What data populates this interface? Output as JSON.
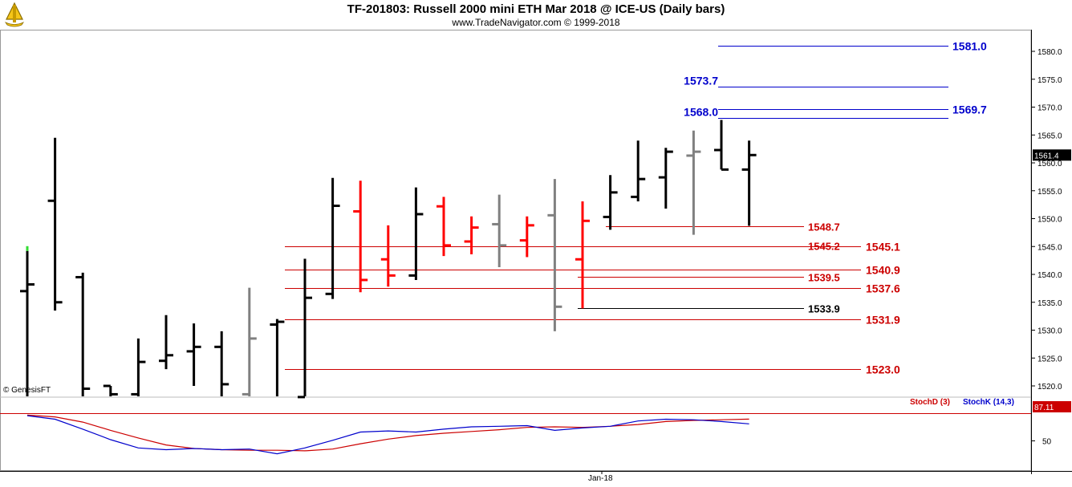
{
  "header": {
    "title": "TF-201803:  Russell 2000 mini ETH Mar 2018 @ ICE-US  (Daily bars)",
    "subtitle": "www.TradeNavigator.com © 1999-2018"
  },
  "watermark": "© GenesisFT",
  "chart_data": [
    {
      "type": "ohlc",
      "title": "TF-201803:  Russell 2000 mini ETH Mar 2018 @ ICE-US  (Daily bars)",
      "y_ticks": [
        1520.0,
        1525.0,
        1530.0,
        1535.0,
        1540.0,
        1545.0,
        1550.0,
        1555.0,
        1560.0,
        1565.0,
        1570.0,
        1575.0,
        1580.0
      ],
      "ylim": [
        1517.5,
        1584.0
      ],
      "x_tick_label": "Jan-18",
      "last_price_label": "1561.4",
      "bars": [
        {
          "o": 1537.0,
          "h": 1544.2,
          "l": 1518.0,
          "c": 1538.2,
          "color": "black"
        },
        {
          "o": 1553.2,
          "h": 1564.5,
          "l": 1533.5,
          "c": 1535.0,
          "color": "black"
        },
        {
          "o": 1539.5,
          "h": 1540.3,
          "l": 1518.0,
          "c": 1519.5,
          "color": "black"
        },
        {
          "o": 1520.0,
          "h": 1520.0,
          "l": 1518.0,
          "c": 1518.5,
          "color": "black"
        },
        {
          "o": 1518.5,
          "h": 1528.5,
          "l": 1518.0,
          "c": 1524.3,
          "color": "black"
        },
        {
          "o": 1524.5,
          "h": 1532.7,
          "l": 1523.0,
          "c": 1525.5,
          "color": "black"
        },
        {
          "o": 1526.2,
          "h": 1531.2,
          "l": 1520.0,
          "c": 1527.0,
          "color": "black"
        },
        {
          "o": 1527.0,
          "h": 1529.8,
          "l": 1518.0,
          "c": 1520.3,
          "color": "black"
        },
        {
          "o": 1518.5,
          "h": 1537.6,
          "l": 1518.0,
          "c": 1528.5,
          "color": "gray"
        },
        {
          "o": 1531.0,
          "h": 1532.0,
          "l": 1518.0,
          "c": 1531.5,
          "color": "black"
        },
        {
          "o": 1518.0,
          "h": 1542.8,
          "l": 1518.0,
          "c": 1535.8,
          "color": "black"
        },
        {
          "o": 1536.5,
          "h": 1557.3,
          "l": 1535.6,
          "c": 1552.3,
          "color": "black"
        },
        {
          "o": 1551.3,
          "h": 1556.8,
          "l": 1536.8,
          "c": 1539.0,
          "color": "red"
        },
        {
          "o": 1542.7,
          "h": 1548.8,
          "l": 1537.8,
          "c": 1539.8,
          "color": "red"
        },
        {
          "o": 1539.8,
          "h": 1555.6,
          "l": 1539.0,
          "c": 1550.8,
          "color": "black"
        },
        {
          "o": 1552.2,
          "h": 1553.9,
          "l": 1543.3,
          "c": 1545.2,
          "color": "red"
        },
        {
          "o": 1545.9,
          "h": 1550.4,
          "l": 1543.6,
          "c": 1548.4,
          "color": "red"
        },
        {
          "o": 1549.0,
          "h": 1554.3,
          "l": 1541.3,
          "c": 1545.2,
          "color": "gray"
        },
        {
          "o": 1546.1,
          "h": 1550.4,
          "l": 1543.1,
          "c": 1548.8,
          "color": "red"
        },
        {
          "o": 1550.6,
          "h": 1557.1,
          "l": 1529.8,
          "c": 1534.2,
          "color": "gray"
        },
        {
          "o": 1542.7,
          "h": 1553.1,
          "l": 1533.9,
          "c": 1549.6,
          "color": "red"
        },
        {
          "o": 1550.3,
          "h": 1557.8,
          "l": 1548.0,
          "c": 1554.7,
          "color": "black"
        },
        {
          "o": 1553.9,
          "h": 1564.0,
          "l": 1553.1,
          "c": 1557.1,
          "color": "black"
        },
        {
          "o": 1557.4,
          "h": 1562.7,
          "l": 1551.8,
          "c": 1562.0,
          "color": "black"
        },
        {
          "o": 1561.3,
          "h": 1565.8,
          "l": 1547.1,
          "c": 1562.0,
          "color": "gray"
        },
        {
          "o": 1562.3,
          "h": 1567.7,
          "l": 1558.8,
          "c": 1558.8,
          "color": "black"
        },
        {
          "o": 1558.8,
          "h": 1564.0,
          "l": 1548.7,
          "c": 1561.4,
          "color": "black"
        }
      ],
      "levels": [
        {
          "label": "1581.0",
          "value": 1581.0,
          "color": "#0000cc",
          "label_side": "right"
        },
        {
          "label": "1573.7",
          "value": 1573.7,
          "color": "#0000cc",
          "label_side": "left"
        },
        {
          "label": "1569.7",
          "value": 1569.7,
          "color": "#0000cc",
          "label_side": "right"
        },
        {
          "label": "1568.0",
          "value": 1568.0,
          "color": "#0000cc",
          "label_side": "left"
        },
        {
          "label": "1548.7",
          "value": 1548.7,
          "color": "#cc0000",
          "label_side": "inner"
        },
        {
          "label": "1545.2",
          "value": 1545.2,
          "color": "#cc0000",
          "label_side": "inner"
        },
        {
          "label": "1545.1",
          "value": 1545.1,
          "color": "#cc0000",
          "label_side": "right"
        },
        {
          "label": "1540.9",
          "value": 1540.9,
          "color": "#cc0000",
          "label_side": "right"
        },
        {
          "label": "1539.5",
          "value": 1539.5,
          "color": "#cc0000",
          "label_side": "inner"
        },
        {
          "label": "1537.6",
          "value": 1537.6,
          "color": "#cc0000",
          "label_side": "right"
        },
        {
          "label": "1533.9",
          "value": 1533.9,
          "color": "#000000",
          "label_side": "inner"
        },
        {
          "label": "1531.9",
          "value": 1531.9,
          "color": "#cc0000",
          "label_side": "right"
        },
        {
          "label": "1523.0",
          "value": 1523.0,
          "color": "#cc0000",
          "label_side": "right"
        }
      ]
    },
    {
      "type": "line",
      "title": "Stochastic",
      "y_ticks": [
        50
      ],
      "ylim": [
        0,
        100
      ],
      "last_value_label": "87.11",
      "series": [
        {
          "name": "StochD (3)",
          "color": "#cc0000",
          "values": [
            94,
            91,
            82,
            68,
            55,
            43,
            37,
            35,
            34,
            34,
            33,
            36,
            45,
            53,
            59,
            63,
            66,
            69,
            73,
            74,
            73,
            75,
            78,
            83,
            85,
            86,
            87.11
          ]
        },
        {
          "name": "StochK (14,3)",
          "color": "#0000cc",
          "values": [
            93,
            87,
            70,
            52,
            38,
            35,
            37,
            35,
            36,
            28,
            38,
            51,
            65,
            67,
            65,
            70,
            74,
            75,
            76,
            68,
            72,
            75,
            84,
            87,
            86,
            83,
            79
          ]
        }
      ]
    }
  ]
}
